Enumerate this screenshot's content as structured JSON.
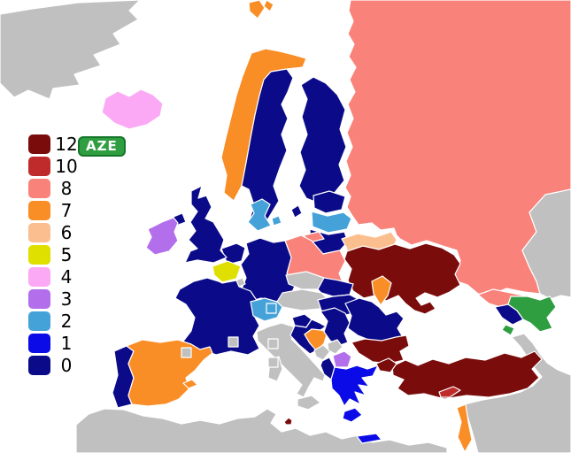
{
  "badge": {
    "label": "AZE",
    "bg": "#2F9E41",
    "border": "#15762B",
    "text_color": "#FFFFFF"
  },
  "legend": {
    "items": [
      {
        "label": "12",
        "color": "#7B0C0C"
      },
      {
        "label": "10",
        "color": "#BF2B2B"
      },
      {
        "label": "8",
        "color": "#F9827A"
      },
      {
        "label": "7",
        "color": "#F98D26"
      },
      {
        "label": "6",
        "color": "#FBBE8E"
      },
      {
        "label": "5",
        "color": "#DFDF00"
      },
      {
        "label": "4",
        "color": "#FBA9F5"
      },
      {
        "label": "3",
        "color": "#B36EEC"
      },
      {
        "label": "2",
        "color": "#45A2D9"
      },
      {
        "label": "1",
        "color": "#0B0BE8"
      },
      {
        "label": "0",
        "color": "#0B0B8A"
      }
    ]
  },
  "map": {
    "sea_color": "#FFFFFF",
    "non_participant_color": "#C0C0C0",
    "border_color": "#FFFFFF",
    "subject_color": "#2F9E41",
    "countries": [
      {
        "id": "azerbaijan",
        "points": "subject"
      },
      {
        "id": "ukraine",
        "points": "12"
      },
      {
        "id": "bulgaria",
        "points": "12"
      },
      {
        "id": "turkey",
        "points": "12"
      },
      {
        "id": "malta",
        "points": "12"
      },
      {
        "id": "cyprus",
        "points": "10"
      },
      {
        "id": "russia",
        "points": "8"
      },
      {
        "id": "poland",
        "points": "8"
      },
      {
        "id": "georgia",
        "points": "8"
      },
      {
        "id": "norway",
        "points": "7"
      },
      {
        "id": "spain",
        "points": "7"
      },
      {
        "id": "bosnia-herzegovina",
        "points": "7"
      },
      {
        "id": "moldova",
        "points": "7"
      },
      {
        "id": "israel",
        "points": "7"
      },
      {
        "id": "belarus",
        "points": "6"
      },
      {
        "id": "belgium",
        "points": "5"
      },
      {
        "id": "iceland",
        "points": "4"
      },
      {
        "id": "ireland",
        "points": "3"
      },
      {
        "id": "macedonia",
        "points": "3"
      },
      {
        "id": "denmark",
        "points": "2"
      },
      {
        "id": "latvia",
        "points": "2"
      },
      {
        "id": "switzerland",
        "points": "2"
      },
      {
        "id": "greece",
        "points": "1"
      },
      {
        "id": "sweden",
        "points": "0"
      },
      {
        "id": "finland",
        "points": "0"
      },
      {
        "id": "estonia",
        "points": "0"
      },
      {
        "id": "lithuania",
        "points": "0"
      },
      {
        "id": "germany",
        "points": "0"
      },
      {
        "id": "netherlands",
        "points": "0"
      },
      {
        "id": "france",
        "points": "0"
      },
      {
        "id": "united-kingdom",
        "points": "0"
      },
      {
        "id": "portugal",
        "points": "0"
      },
      {
        "id": "slovakia",
        "points": "0"
      },
      {
        "id": "hungary",
        "points": "0"
      },
      {
        "id": "slovenia",
        "points": "0"
      },
      {
        "id": "croatia",
        "points": "0"
      },
      {
        "id": "serbia",
        "points": "0"
      },
      {
        "id": "albania",
        "points": "0"
      },
      {
        "id": "romania",
        "points": "0"
      },
      {
        "id": "armenia",
        "points": "0"
      },
      {
        "id": "italy",
        "points": "none"
      },
      {
        "id": "austria",
        "points": "none"
      },
      {
        "id": "czech-republic",
        "points": "none"
      },
      {
        "id": "montenegro",
        "points": "none"
      },
      {
        "id": "kosovo",
        "points": "none"
      },
      {
        "id": "luxembourg",
        "points": "none"
      },
      {
        "id": "greenland",
        "points": "none"
      },
      {
        "id": "kazakhstan",
        "points": "none"
      },
      {
        "id": "north-africa",
        "points": "none"
      },
      {
        "id": "middle-east",
        "points": "none"
      },
      {
        "id": "andorra",
        "points": "none"
      },
      {
        "id": "monaco",
        "points": "none"
      },
      {
        "id": "san-marino",
        "points": "none"
      },
      {
        "id": "vatican-city",
        "points": "none"
      }
    ]
  }
}
